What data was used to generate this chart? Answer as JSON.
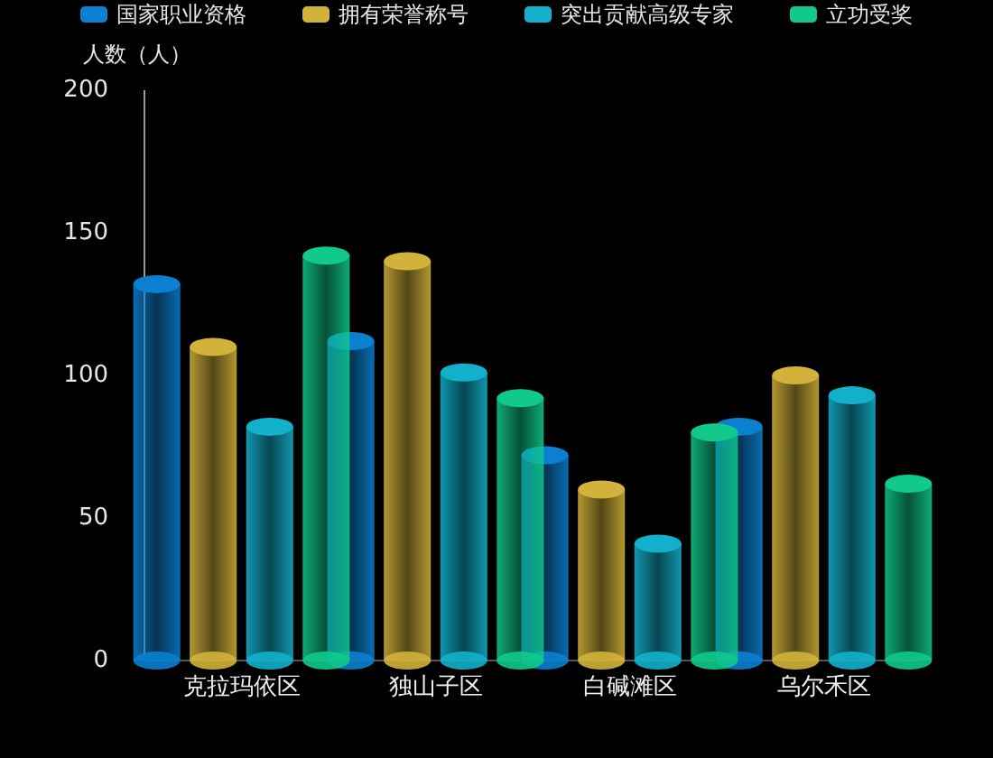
{
  "chart_data": {
    "type": "bar",
    "ylabel": "人数（人）",
    "categories": [
      "克拉玛依区",
      "独山子区",
      "白碱滩区",
      "乌尔禾区"
    ],
    "series": [
      {
        "name": "国家职业资格",
        "color": "#0b80d0",
        "values": [
          132,
          112,
          72,
          82
        ]
      },
      {
        "name": "拥有荣誉称号",
        "color": "#d2b23a",
        "values": [
          110,
          140,
          60,
          100
        ]
      },
      {
        "name": "突出贡献高级专家",
        "color": "#13b0cc",
        "values": [
          82,
          101,
          41,
          93
        ]
      },
      {
        "name": "立功受奖",
        "color": "#10c98a",
        "values": [
          142,
          92,
          80,
          62
        ]
      }
    ],
    "ylim": [
      0,
      200
    ],
    "yticks": [
      0,
      50,
      100,
      150,
      200
    ],
    "legend": "top",
    "grid": false
  }
}
